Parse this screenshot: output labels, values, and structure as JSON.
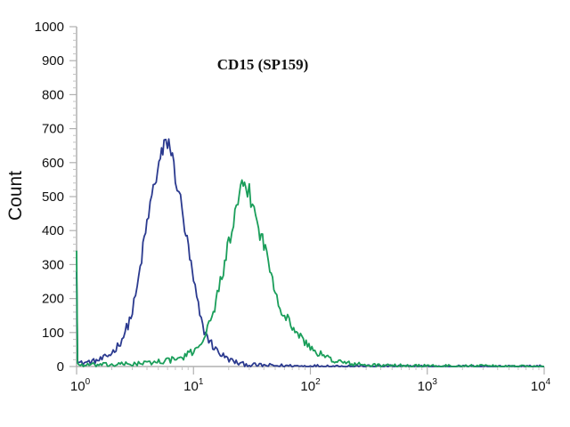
{
  "chart_data": {
    "type": "line",
    "title": "CD15 (SP159)",
    "xlabel": "",
    "ylabel": "Count",
    "x_scale": "log",
    "xlim": [
      1,
      10000
    ],
    "ylim": [
      0,
      1000
    ],
    "y_ticks": [
      0,
      100,
      200,
      300,
      400,
      500,
      600,
      700,
      800,
      900,
      1000
    ],
    "x_ticks": [
      {
        "value": 1,
        "base": "10",
        "exp": "0"
      },
      {
        "value": 10,
        "base": "10",
        "exp": "1"
      },
      {
        "value": 100,
        "base": "10",
        "exp": "2"
      },
      {
        "value": 1000,
        "base": "10",
        "exp": "3"
      },
      {
        "value": 10000,
        "base": "10",
        "exp": "4"
      }
    ],
    "grid": false,
    "series": [
      {
        "color": "#2b3a8f",
        "x": [
          1.0,
          1.02,
          1.05,
          1.1,
          1.2,
          1.4,
          1.6,
          1.8,
          2.0,
          2.3,
          2.6,
          3.0,
          3.3,
          3.6,
          4.0,
          4.4,
          4.8,
          5.2,
          5.6,
          6.0,
          6.3,
          6.6,
          7.0,
          7.5,
          8.0,
          8.6,
          9.3,
          10.0,
          11.0,
          12.0,
          13.5,
          15.0,
          17.0,
          19.0,
          22.0,
          25.0,
          30.0,
          40.0,
          60.0,
          100.0,
          1000.0,
          10000.0
        ],
        "y": [
          300,
          20,
          12,
          10,
          12,
          15,
          20,
          28,
          40,
          65,
          100,
          160,
          230,
          320,
          420,
          500,
          560,
          610,
          640,
          665,
          650,
          610,
          560,
          520,
          450,
          390,
          320,
          250,
          175,
          115,
          80,
          55,
          38,
          25,
          15,
          8,
          5,
          3,
          2,
          1,
          0,
          0
        ]
      },
      {
        "color": "#1a9e5a",
        "x": [
          1.0,
          1.02,
          1.05,
          2.0,
          4.0,
          6.0,
          8.0,
          10.0,
          12.0,
          14.0,
          16.0,
          18.0,
          20.0,
          22.0,
          24.0,
          26.0,
          28.0,
          30.0,
          33.0,
          36.0,
          40.0,
          45.0,
          50.0,
          55.0,
          60.0,
          70.0,
          80.0,
          100.0,
          130.0,
          170.0,
          220.0,
          300.0,
          500.0,
          1000.0,
          10000.0
        ],
        "y": [
          350,
          10,
          4,
          5,
          10,
          18,
          25,
          45,
          80,
          130,
          210,
          290,
          360,
          420,
          480,
          520,
          535,
          510,
          460,
          410,
          360,
          290,
          230,
          180,
          150,
          120,
          90,
          55,
          30,
          15,
          8,
          4,
          2,
          1,
          0
        ]
      }
    ]
  }
}
